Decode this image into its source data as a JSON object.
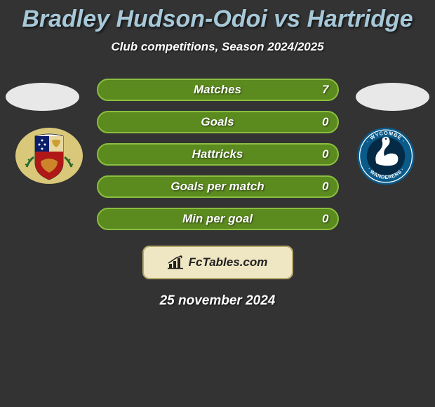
{
  "title": {
    "text": "Bradley Hudson-Odoi vs Hartridge",
    "fontsize": 34,
    "color": "#a7c8d8"
  },
  "subtitle": {
    "text": "Club competitions, Season 2024/2025",
    "fontsize": 17
  },
  "background_color": "#333333",
  "player_left": {
    "oval_color": "#e8e8e8",
    "badge": {
      "bg": "#d9c87a",
      "shield_top_left": "#0a1f6b",
      "shield_top_right": "#e8d8a0",
      "shield_bottom": "#b01818",
      "leaf": "#2a6b2a"
    }
  },
  "player_right": {
    "oval_color": "#e8e8e8",
    "badge": {
      "bg": "#0a5a8a",
      "inner": "#052a45",
      "swan": "#ffffff",
      "text_color": "#ffffff"
    }
  },
  "stats": {
    "row_bg": "#5b8a1f",
    "border_color": "#8abf3f",
    "label_fontsize": 17,
    "value_fontsize": 17,
    "rows": [
      {
        "label": "Matches",
        "left": "",
        "right": "7"
      },
      {
        "label": "Goals",
        "left": "",
        "right": "0"
      },
      {
        "label": "Hattricks",
        "left": "",
        "right": "0"
      },
      {
        "label": "Goals per match",
        "left": "",
        "right": "0"
      },
      {
        "label": "Min per goal",
        "left": "",
        "right": "0"
      }
    ]
  },
  "fctables": {
    "box_bg": "#efe6c3",
    "box_border": "#b5a96a",
    "text": "FcTables.com",
    "fontsize": 17,
    "icon_color": "#222222"
  },
  "date": {
    "text": "25 november 2024",
    "fontsize": 19
  }
}
